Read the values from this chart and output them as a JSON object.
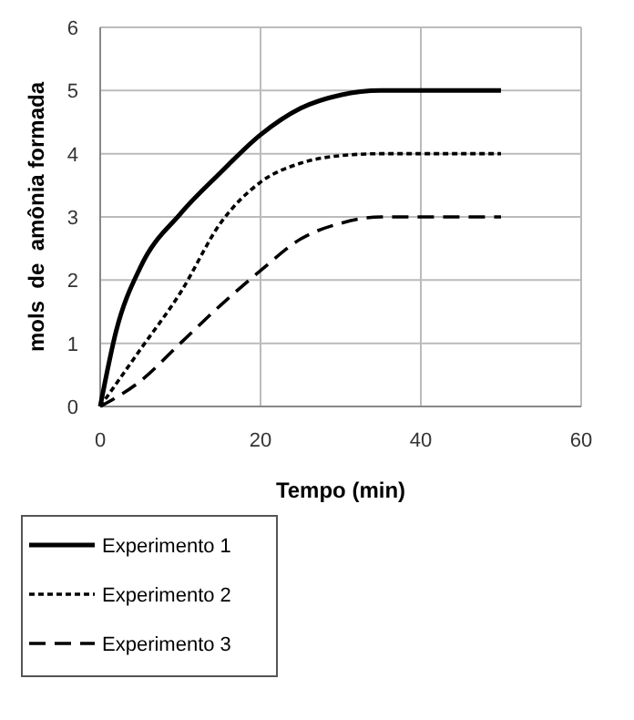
{
  "chart_data": {
    "type": "line",
    "xlabel": "Tempo (min)",
    "ylabel": "mols  de  amônia formada",
    "series": [
      {
        "name": "Experimento 1",
        "color": "#000000",
        "line_style": "solid",
        "x": [
          0,
          2,
          5,
          10,
          15,
          20,
          25,
          30,
          35,
          40,
          50
        ],
        "values": [
          0,
          1.2,
          2.2,
          3.05,
          3.7,
          4.3,
          4.72,
          4.93,
          5.0,
          5.0,
          5.0
        ]
      },
      {
        "name": "Experimento 2",
        "color": "#000000",
        "line_style": "dotted",
        "x": [
          0,
          5,
          10,
          15,
          20,
          25,
          30,
          35,
          50
        ],
        "values": [
          0,
          0.9,
          1.8,
          2.9,
          3.55,
          3.85,
          3.97,
          4,
          4
        ]
      },
      {
        "name": "Experimento 3",
        "color": "#000000",
        "line_style": "dashed",
        "x": [
          0,
          5,
          10,
          15,
          20,
          25,
          30,
          35,
          50
        ],
        "values": [
          0,
          0.4,
          1.0,
          1.6,
          2.15,
          2.65,
          2.9,
          3,
          3
        ]
      }
    ],
    "xlim": [
      0,
      60
    ],
    "xticks": [
      0,
      20,
      40,
      60
    ],
    "ylim": [
      0,
      6
    ],
    "yticks": [
      0,
      1,
      2,
      3,
      4,
      5,
      6
    ],
    "grid": true,
    "legend": "bottom"
  }
}
